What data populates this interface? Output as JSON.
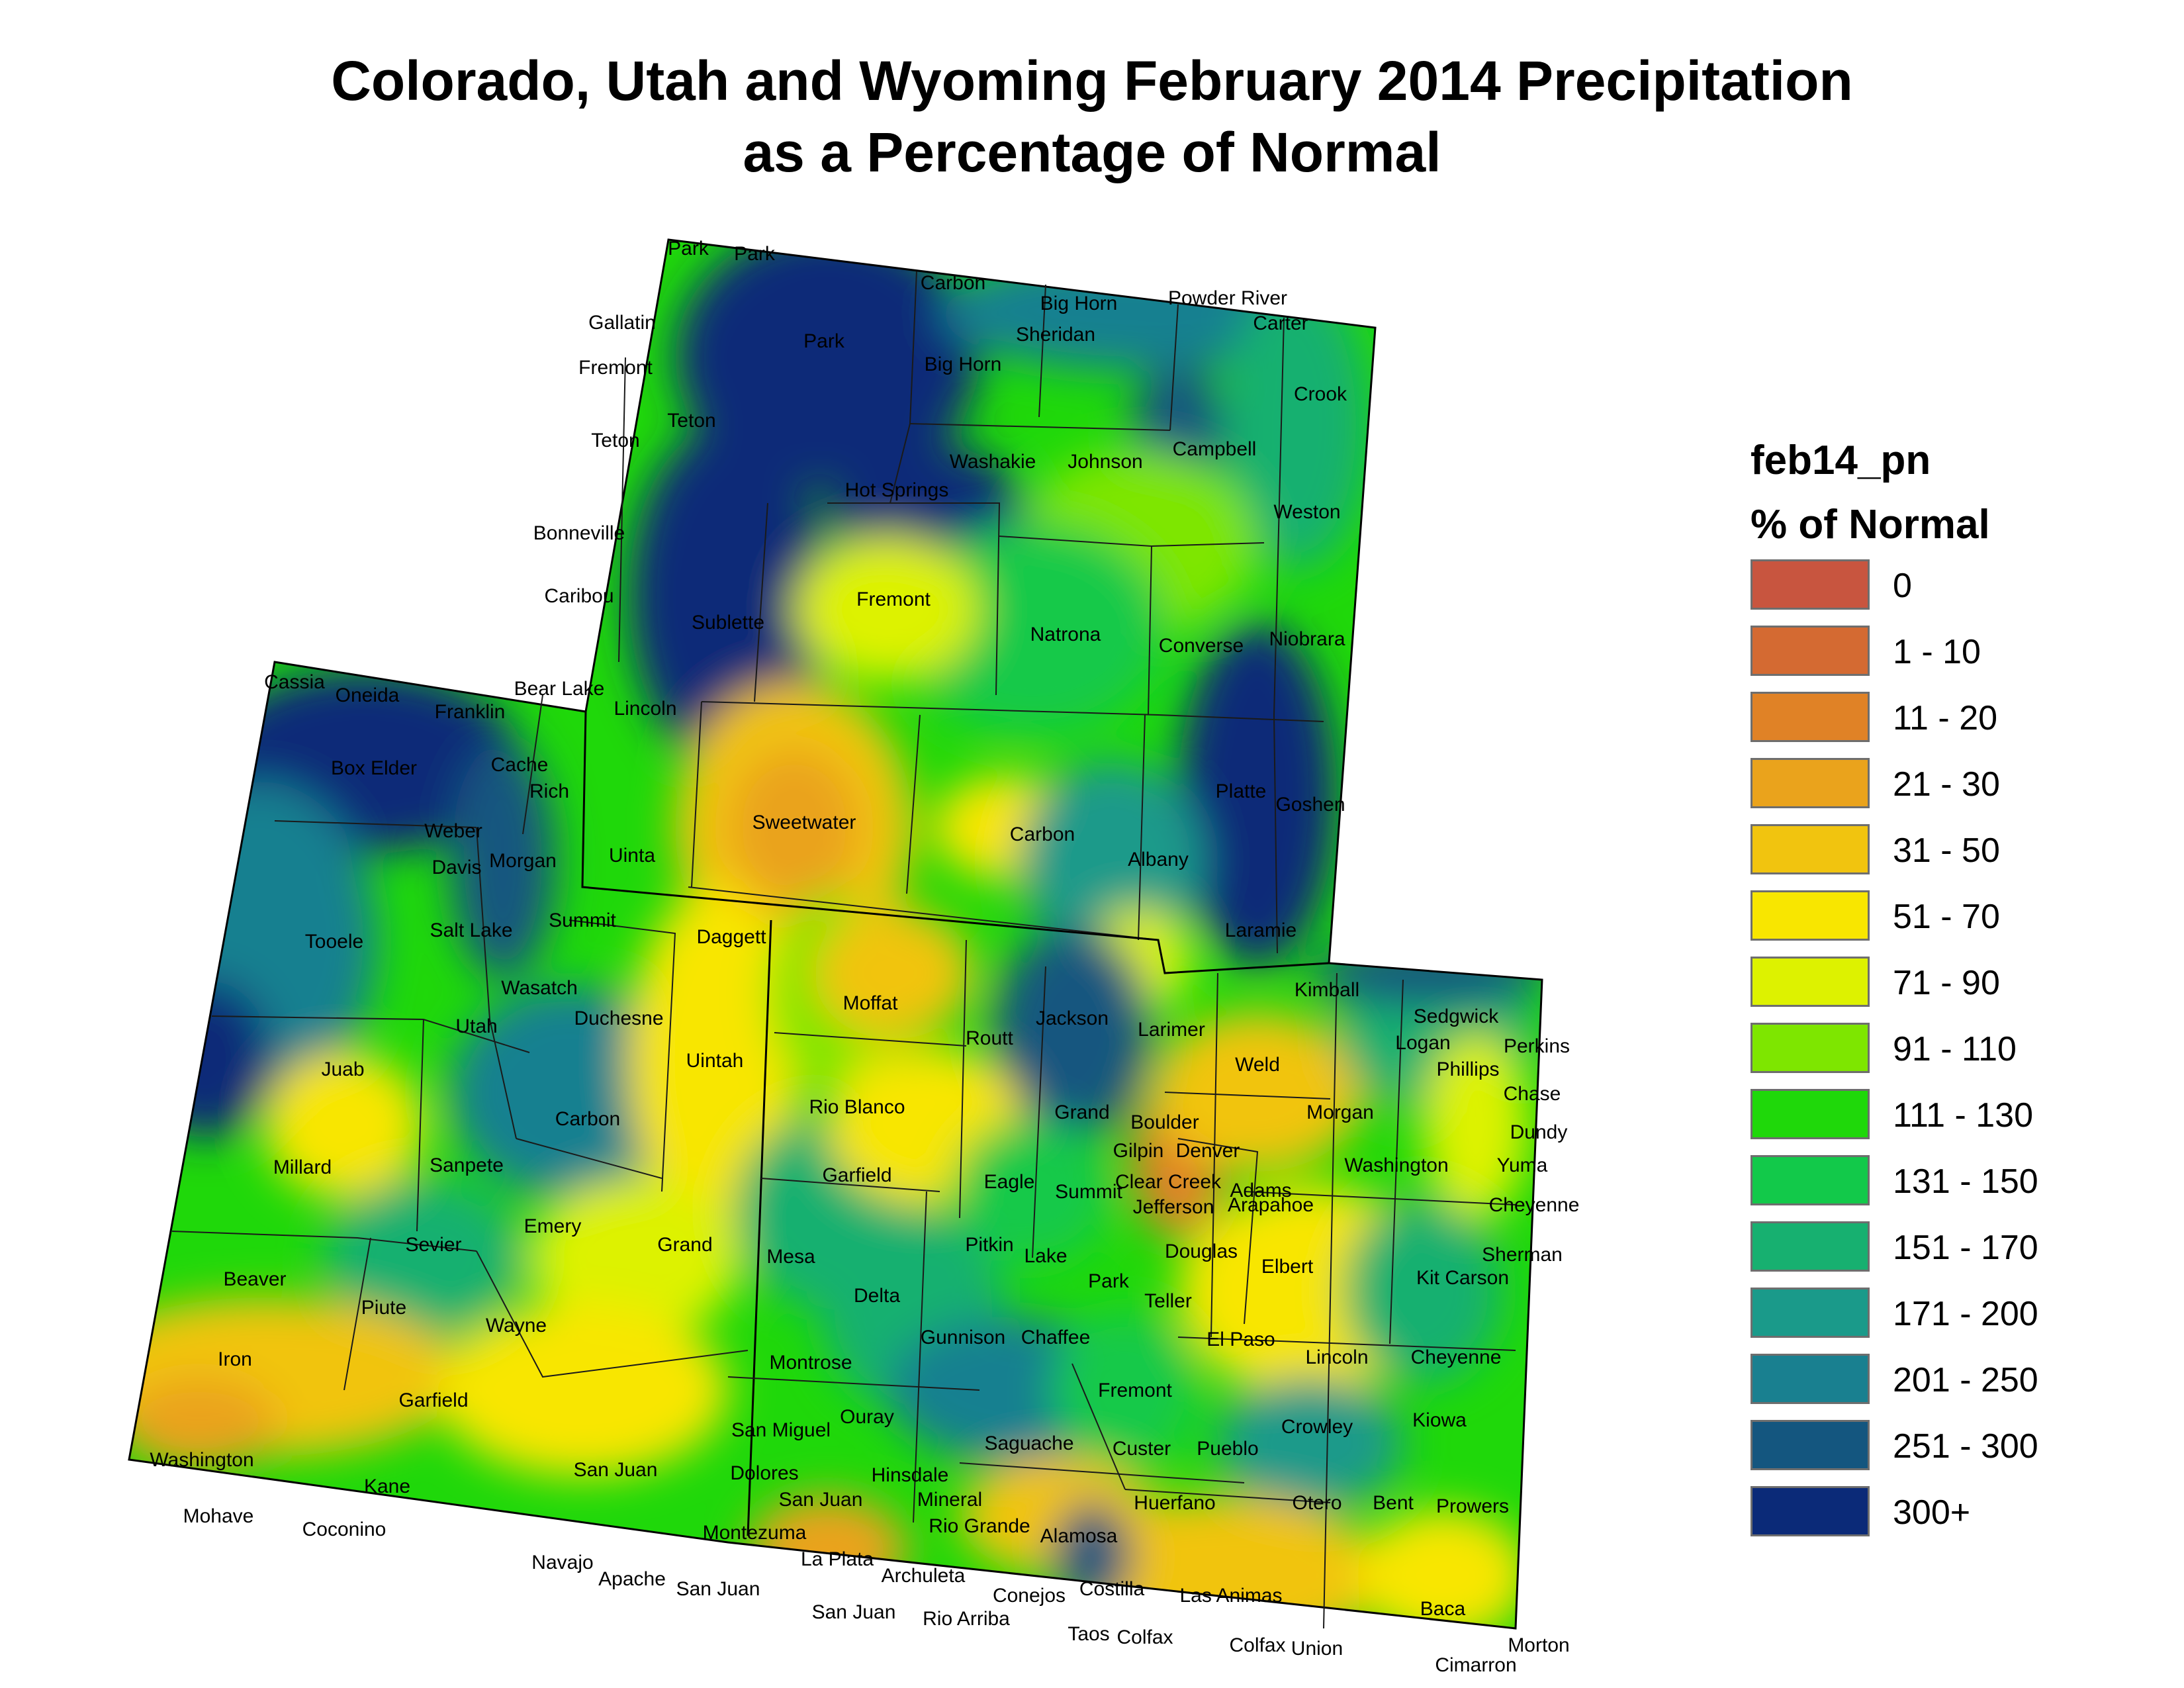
{
  "title": {
    "line1": "Colorado, Utah and Wyoming February 2014 Precipitation",
    "line2": "as a Percentage of Normal"
  },
  "legend": {
    "layer_name": "feb14_pn",
    "units": "% of Normal",
    "classes": [
      {
        "label": "0",
        "color": "#c8553f"
      },
      {
        "label": "1 - 10",
        "color": "#d46a32"
      },
      {
        "label": "11 - 20",
        "color": "#e08226"
      },
      {
        "label": "21 - 30",
        "color": "#eaa31c"
      },
      {
        "label": "31 - 50",
        "color": "#f1c40f"
      },
      {
        "label": "51 - 70",
        "color": "#f8e600"
      },
      {
        "label": "71 - 90",
        "color": "#ddf200"
      },
      {
        "label": "91 - 110",
        "color": "#7ee600"
      },
      {
        "label": "111 - 130",
        "color": "#1fd80a"
      },
      {
        "label": "131 - 150",
        "color": "#12c94a"
      },
      {
        "label": "151 - 170",
        "color": "#17b070"
      },
      {
        "label": "171 - 200",
        "color": "#1a9a8a"
      },
      {
        "label": "201 - 250",
        "color": "#198090"
      },
      {
        "label": "251 - 300",
        "color": "#14567f"
      },
      {
        "label": "300+",
        "color": "#0b2a78"
      }
    ]
  },
  "counties": [
    "Park",
    "Park",
    "Carbon",
    "Big Horn",
    "Powder River",
    "Gallatin",
    "Park",
    "Sheridan",
    "Carter",
    "Fremont",
    "Big Horn",
    "Crook",
    "Teton",
    "Teton",
    "Campbell",
    "Washakie",
    "Johnson",
    "Hot Springs",
    "Weston",
    "Bonneville",
    "Fremont",
    "Caribou",
    "Sublette",
    "Natrona",
    "Converse",
    "Niobrara",
    "Cassia",
    "Oneida",
    "Bear Lake",
    "Franklin",
    "Lincoln",
    "Box Elder",
    "Cache",
    "Rich",
    "Platte",
    "Goshen",
    "Sweetwater",
    "Carbon",
    "Weber",
    "Davis",
    "Morgan",
    "Uinta",
    "Albany",
    "Summit",
    "Salt Lake",
    "Tooele",
    "Daggett",
    "Laramie",
    "Kimball",
    "Wasatch",
    "Moffat",
    "Duchesne",
    "Jackson",
    "Sedgwick",
    "Perkins",
    "Logan",
    "Utah",
    "Routt",
    "Larimer",
    "Uintah",
    "Juab",
    "Phillips",
    "Chase",
    "Weld",
    "Grand",
    "Morgan",
    "Carbon",
    "Rio Blanco",
    "Boulder",
    "Dundy",
    "Gilpin",
    "Denver",
    "Sanpete",
    "Washington",
    "Yuma",
    "Millard",
    "Garfield",
    "Eagle",
    "Summit",
    "Clear Creek",
    "Adams",
    "Jefferson",
    "Arapahoe",
    "Cheyenne",
    "Emery",
    "Sevier",
    "Grand",
    "Pitkin",
    "Mesa",
    "Douglas",
    "Lake",
    "Elbert",
    "Sherman",
    "Kit Carson",
    "Beaver",
    "Park",
    "Delta",
    "Piute",
    "Teller",
    "Wayne",
    "Gunnison",
    "Chaffee",
    "El Paso",
    "Lincoln",
    "Cheyenne",
    "Iron",
    "Montrose",
    "Fremont",
    "Garfield",
    "Ouray",
    "Kiowa",
    "Crowley",
    "San Miguel",
    "Saguache",
    "Custer",
    "Pueblo",
    "Washington",
    "San Juan",
    "Kane",
    "Dolores",
    "Hinsdale",
    "San Juan",
    "Mineral",
    "Huerfano",
    "Otero",
    "Bent",
    "Prowers",
    "Mohave",
    "Coconino",
    "Rio Grande",
    "Alamosa",
    "Montezuma",
    "Navajo",
    "La Plata",
    "Apache",
    "Archuleta",
    "San Juan",
    "Costilla",
    "Las Animas",
    "Conejos",
    "Baca",
    "San Juan",
    "Rio Arriba",
    "Taos",
    "Colfax",
    "Colfax",
    "Union",
    "Morton",
    "Cimarron"
  ]
}
